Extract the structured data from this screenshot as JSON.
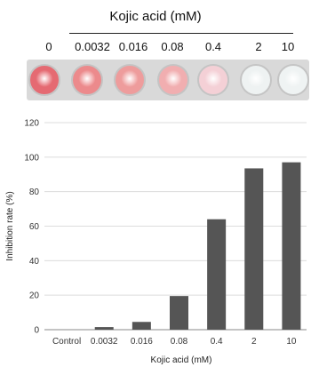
{
  "plate": {
    "title": "Kojic acid (mM)",
    "labels": [
      "0",
      "0.0032",
      "0.016",
      "0.08",
      "0.4",
      "2",
      "10"
    ],
    "well_colors": [
      "#e56a72",
      "#ec8a8c",
      "#ee9c9c",
      "#f1aeb0",
      "#f4d0d6",
      "#eef2f2",
      "#eff3f3"
    ]
  },
  "chart_data": {
    "type": "bar",
    "categories": [
      "Control",
      "0.0032",
      "0.016",
      "0.08",
      "0.4",
      "2",
      "10"
    ],
    "values": [
      0,
      1.5,
      4.5,
      19.5,
      64,
      93.5,
      97
    ],
    "xlabel": "Kojic acid (mM)",
    "ylabel": "Inhibition rate (%)",
    "ylim": [
      0,
      120
    ],
    "yticks": [
      0,
      20,
      40,
      60,
      80,
      100,
      120
    ],
    "grid": true,
    "bar_color": "#555555"
  }
}
